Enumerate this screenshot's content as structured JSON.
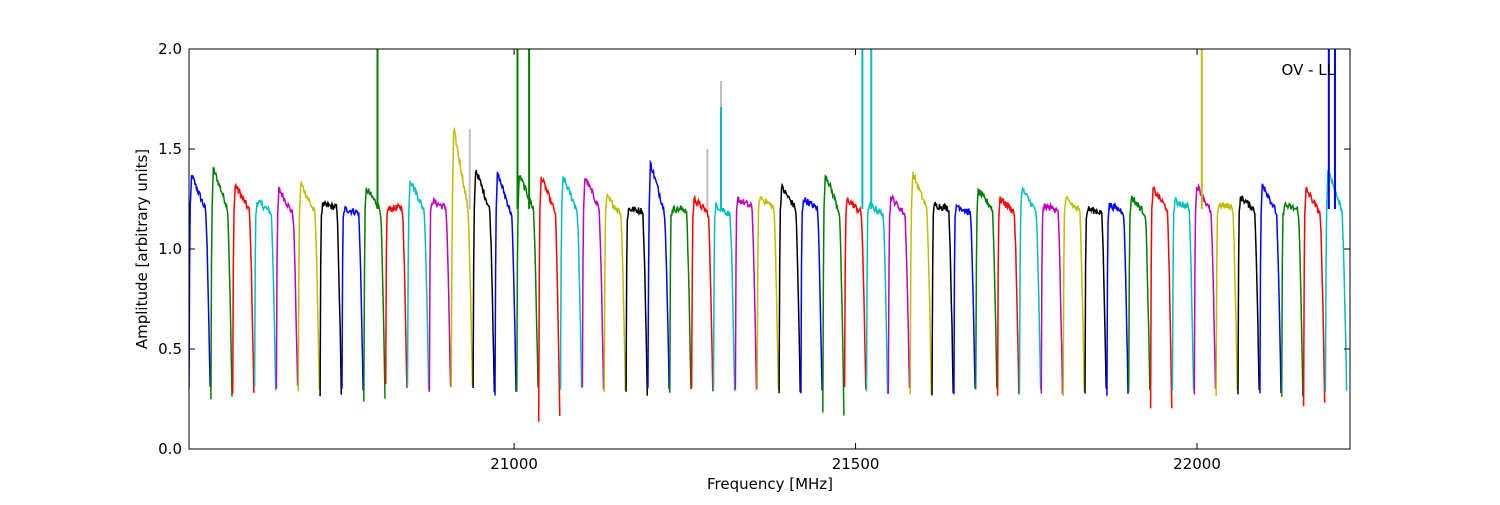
{
  "chart_data": {
    "type": "line",
    "title": "",
    "annotation": "OV - LL",
    "xlabel": "Frequency [MHz]",
    "ylabel": "Amplitude [arbitrary units]",
    "xlim": [
      20524,
      22224
    ],
    "ylim": [
      0.0,
      2.0
    ],
    "xticks": [
      21000,
      21500,
      22000
    ],
    "xtick_labels": [
      "21000",
      "21500",
      "22000"
    ],
    "yticks": [
      0.0,
      0.5,
      1.0,
      1.5,
      2.0
    ],
    "ytick_labels": [
      "0.0",
      "0.5",
      "1.0",
      "1.5",
      "2.0"
    ],
    "grid": false,
    "legend": "none",
    "color_cycle": [
      "#0000ff",
      "#007f00",
      "#ff0000",
      "#00bfbf",
      "#bf00bf",
      "#bfbf00",
      "#000000"
    ],
    "background_trace_color": "#c0c0c0",
    "segment_start": 20524,
    "segment_width": 32,
    "segment_count": 53,
    "peak_levels": [
      1.37,
      1.4,
      1.32,
      1.24,
      1.3,
      1.33,
      1.22,
      1.2,
      1.3,
      1.2,
      1.35,
      1.24,
      1.6,
      1.4,
      1.38,
      1.37,
      1.36,
      1.36,
      1.36,
      1.26,
      1.2,
      1.43,
      1.2,
      1.25,
      1.22,
      1.25,
      1.26,
      1.31,
      1.25,
      1.38,
      1.25,
      1.22,
      1.26,
      1.38,
      1.22,
      1.22,
      1.29,
      1.25,
      1.3,
      1.21,
      1.25,
      1.2,
      1.22,
      1.26,
      1.3,
      1.24,
      1.32,
      1.22,
      1.26,
      1.33,
      1.22,
      1.3,
      1.4
    ],
    "dip_levels": [
      0.31,
      0.25,
      0.27,
      0.3,
      0.3,
      0.28,
      0.28,
      0.29,
      0.24,
      0.32,
      0.31,
      0.3,
      0.31,
      0.29,
      0.28,
      0.3,
      0.15,
      0.3,
      0.3,
      0.3,
      0.28,
      0.3,
      0.29,
      0.3,
      0.28,
      0.28,
      0.3,
      0.28,
      0.28,
      0.17,
      0.3,
      0.29,
      0.29,
      0.28,
      0.28,
      0.29,
      0.3,
      0.28,
      0.29,
      0.28,
      0.28,
      0.29,
      0.28,
      0.28,
      0.22,
      0.28,
      0.29,
      0.28,
      0.29,
      0.27,
      0.27,
      0.22,
      0.3
    ],
    "spikes": [
      {
        "x": 20800,
        "y": 2.0,
        "color": "#007f00"
      },
      {
        "x": 20935,
        "y": 1.6,
        "color": "#c0c0c0"
      },
      {
        "x": 21005,
        "y": 2.0,
        "color": "#007f00"
      },
      {
        "x": 21022,
        "y": 2.0,
        "color": "#007f00"
      },
      {
        "x": 21283,
        "y": 1.5,
        "color": "#c0c0c0"
      },
      {
        "x": 21303,
        "y": 1.84,
        "color": "#c0c0c0"
      },
      {
        "x": 21303,
        "y": 1.71,
        "color": "#00bfbf"
      },
      {
        "x": 21510,
        "y": 2.0,
        "color": "#00bfbf"
      },
      {
        "x": 21523,
        "y": 2.0,
        "color": "#00bfbf"
      },
      {
        "x": 22007,
        "y": 2.0,
        "color": "#bfbf00"
      },
      {
        "x": 22193,
        "y": 2.0,
        "color": "#0000ff"
      },
      {
        "x": 22202,
        "y": 2.0,
        "color": "#0000ff"
      }
    ]
  }
}
